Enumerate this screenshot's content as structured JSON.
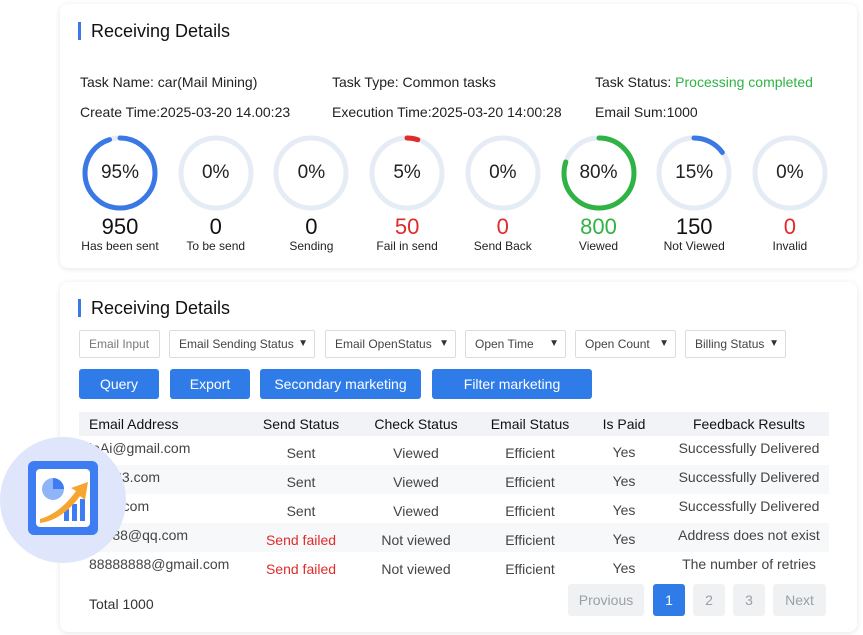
{
  "section1": {
    "title": "Receiving Details",
    "task_name": "Task Name: car(Mail Mining)",
    "task_type": "Task Type: Common tasks",
    "task_status_label": "Task Status: ",
    "task_status_value": "Processing completed",
    "create_time": "Create Time:2025-03-20 14.00:23",
    "execution_time": "Execution Time:2025-03-20 14:00:28",
    "email_sum": "Email Sum:1000"
  },
  "stats": [
    {
      "pct_label": "95%",
      "percent": 95,
      "count": "950",
      "label": "Has been sent",
      "color": "#3a78e6"
    },
    {
      "pct_label": "0%",
      "percent": 0,
      "count": "0",
      "label": "To be send",
      "color": "#3a78e6"
    },
    {
      "pct_label": "0%",
      "percent": 0,
      "count": "0",
      "label": "Sending",
      "color": "#3a78e6"
    },
    {
      "pct_label": "5%",
      "percent": 5,
      "count": "50",
      "label": "Fail in send",
      "color": "#e02b2b"
    },
    {
      "pct_label": "0%",
      "percent": 0,
      "count": "0",
      "label": "Send Back",
      "color": "#e02b2b"
    },
    {
      "pct_label": "80%",
      "percent": 80,
      "count": "800",
      "label": "Viewed",
      "color": "#2fb344"
    },
    {
      "pct_label": "15%",
      "percent": 15,
      "count": "150",
      "label": "Not Viewed",
      "color": "#3a78e6"
    },
    {
      "pct_label": "0%",
      "percent": 0,
      "count": "0",
      "label": "Invalid",
      "color": "#e02b2b"
    }
  ],
  "section2": {
    "title": "Receiving Details",
    "filters": {
      "email_input_placeholder": "Email Input",
      "sending_status": "Email Sending Status",
      "open_status": "Email OpenStatus",
      "open_time": "Open Time",
      "open_count": "Open Count",
      "billing_status": "Billing Status"
    },
    "buttons": {
      "query": "Query",
      "export": "Export",
      "secondary_marketing": "Secondary marketing",
      "filter_marketing": "Filter marketing"
    },
    "table": {
      "headers": [
        "Email Address",
        "Send Status",
        "Check Status",
        "Email Status",
        "Is Paid",
        "Feedback Results"
      ],
      "rows": [
        {
          "email": "leAi@gmail.com",
          "send": "Sent",
          "check": "Viewed",
          "status": "Efficient",
          "paid": "Yes",
          "feedback": "Successfully Delivered"
        },
        {
          "email": "i@163.com",
          "send": "Sent",
          "check": "Viewed",
          "status": "Efficient",
          "paid": "Yes",
          "feedback": "Successfully Delivered"
        },
        {
          "email": "@qq.com",
          "send": "Sent",
          "check": "Viewed",
          "status": "Efficient",
          "paid": "Yes",
          "feedback": "Successfully Delivered"
        },
        {
          "email": "38888@qq.com",
          "send": "Send failed",
          "check": "Not viewed",
          "status": "Efficient",
          "paid": "Yes",
          "feedback": "Address does not exist"
        },
        {
          "email": "88888888@gmail.com",
          "send": "Send failed",
          "check": "Not viewed",
          "status": "Efficient",
          "paid": "Yes",
          "feedback": "The number of retries"
        }
      ]
    },
    "total": "Total 1000",
    "pagination": {
      "previous": "Provious",
      "pages": [
        "1",
        "2",
        "3"
      ],
      "current": "1",
      "next": "Next"
    }
  },
  "overlay_icon": "report-chart-icon"
}
